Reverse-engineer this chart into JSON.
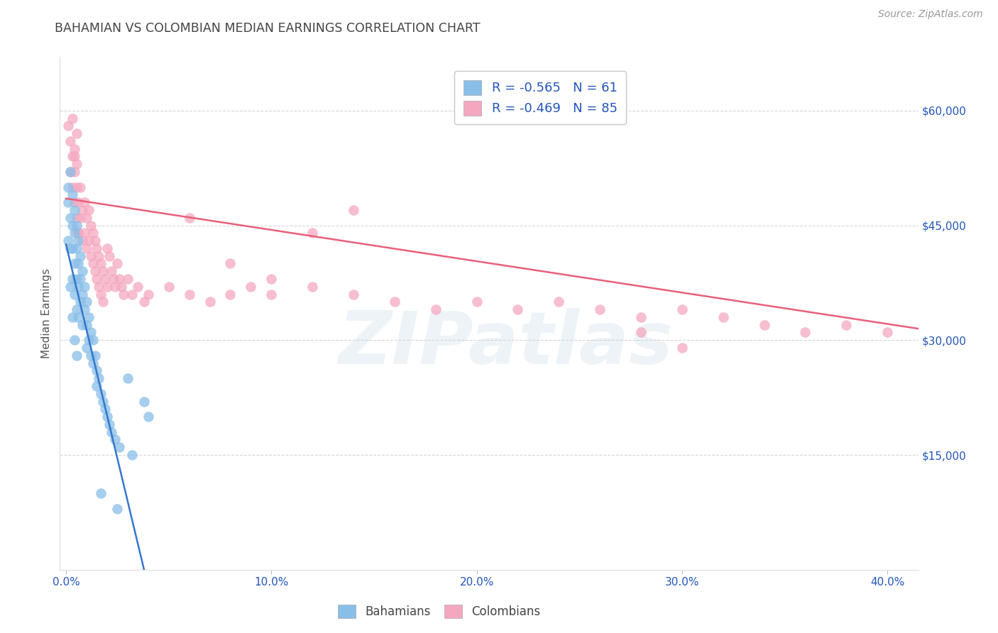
{
  "title": "BAHAMIAN VS COLOMBIAN MEDIAN EARNINGS CORRELATION CHART",
  "source": "Source: ZipAtlas.com",
  "xlabel_ticks": [
    "0.0%",
    "10.0%",
    "20.0%",
    "30.0%",
    "40.0%"
  ],
  "xlabel_vals": [
    0.0,
    0.1,
    0.2,
    0.3,
    0.4
  ],
  "ylabel_ticks": [
    "$15,000",
    "$30,000",
    "$45,000",
    "$60,000"
  ],
  "ylabel_vals": [
    15000,
    30000,
    45000,
    60000
  ],
  "ylabel_label": "Median Earnings",
  "ylim": [
    0,
    67000
  ],
  "xlim": [
    -0.003,
    0.415
  ],
  "blue_color": "#89BEE8",
  "pink_color": "#F4A8C0",
  "blue_line_color": "#3377CC",
  "pink_line_color": "#E8607A",
  "blue_R": -0.565,
  "blue_N": 61,
  "pink_R": -0.469,
  "pink_N": 85,
  "title_color": "#444444",
  "axis_label_color": "#2255BB",
  "source_color": "#999999",
  "watermark_text": "ZIPatlas",
  "legend_label_blue": "Bahamians",
  "legend_label_pink": "Colombians",
  "blue_scatter_x": [
    0.001,
    0.001,
    0.002,
    0.002,
    0.002,
    0.003,
    0.003,
    0.003,
    0.003,
    0.004,
    0.004,
    0.004,
    0.004,
    0.005,
    0.005,
    0.005,
    0.005,
    0.006,
    0.006,
    0.006,
    0.006,
    0.007,
    0.007,
    0.007,
    0.008,
    0.008,
    0.008,
    0.009,
    0.009,
    0.01,
    0.01,
    0.01,
    0.011,
    0.011,
    0.012,
    0.012,
    0.013,
    0.013,
    0.014,
    0.015,
    0.015,
    0.016,
    0.017,
    0.018,
    0.019,
    0.02,
    0.021,
    0.022,
    0.024,
    0.026,
    0.03,
    0.032,
    0.038,
    0.04,
    0.001,
    0.002,
    0.003,
    0.004,
    0.005,
    0.017,
    0.025
  ],
  "blue_scatter_y": [
    48000,
    50000,
    52000,
    46000,
    42000,
    49000,
    45000,
    42000,
    38000,
    47000,
    44000,
    40000,
    36000,
    45000,
    42000,
    38000,
    34000,
    43000,
    40000,
    37000,
    33000,
    41000,
    38000,
    35000,
    39000,
    36000,
    32000,
    37000,
    34000,
    35000,
    32000,
    29000,
    33000,
    30000,
    31000,
    28000,
    30000,
    27000,
    28000,
    26000,
    24000,
    25000,
    23000,
    22000,
    21000,
    20000,
    19000,
    18000,
    17000,
    16000,
    25000,
    15000,
    22000,
    20000,
    43000,
    37000,
    33000,
    30000,
    28000,
    10000,
    8000
  ],
  "pink_scatter_x": [
    0.001,
    0.002,
    0.002,
    0.003,
    0.003,
    0.004,
    0.004,
    0.004,
    0.005,
    0.005,
    0.005,
    0.006,
    0.006,
    0.007,
    0.007,
    0.008,
    0.008,
    0.009,
    0.009,
    0.01,
    0.01,
    0.011,
    0.011,
    0.012,
    0.012,
    0.013,
    0.013,
    0.014,
    0.014,
    0.015,
    0.015,
    0.016,
    0.016,
    0.017,
    0.017,
    0.018,
    0.018,
    0.019,
    0.02,
    0.02,
    0.021,
    0.022,
    0.023,
    0.024,
    0.025,
    0.026,
    0.027,
    0.028,
    0.03,
    0.032,
    0.035,
    0.038,
    0.04,
    0.05,
    0.06,
    0.07,
    0.08,
    0.09,
    0.1,
    0.12,
    0.14,
    0.16,
    0.18,
    0.2,
    0.22,
    0.24,
    0.26,
    0.28,
    0.3,
    0.32,
    0.34,
    0.36,
    0.38,
    0.4,
    0.003,
    0.004,
    0.005,
    0.006,
    0.12,
    0.14,
    0.06,
    0.08,
    0.1,
    0.28,
    0.3
  ],
  "pink_scatter_y": [
    58000,
    56000,
    52000,
    54000,
    50000,
    52000,
    48000,
    54000,
    50000,
    46000,
    53000,
    48000,
    44000,
    50000,
    46000,
    47000,
    43000,
    48000,
    44000,
    46000,
    42000,
    47000,
    43000,
    45000,
    41000,
    44000,
    40000,
    43000,
    39000,
    42000,
    38000,
    41000,
    37000,
    40000,
    36000,
    39000,
    35000,
    38000,
    42000,
    37000,
    41000,
    39000,
    38000,
    37000,
    40000,
    38000,
    37000,
    36000,
    38000,
    36000,
    37000,
    35000,
    36000,
    37000,
    36000,
    35000,
    36000,
    37000,
    38000,
    37000,
    36000,
    35000,
    34000,
    35000,
    34000,
    35000,
    34000,
    33000,
    34000,
    33000,
    32000,
    31000,
    32000,
    31000,
    59000,
    55000,
    57000,
    44000,
    44000,
    47000,
    46000,
    40000,
    36000,
    31000,
    29000
  ],
  "blue_line_x0": 0.0,
  "blue_line_y0": 42500,
  "blue_line_x1": 0.038,
  "blue_line_y1": 0,
  "pink_line_x0": 0.0,
  "pink_line_y0": 48500,
  "pink_line_x1": 0.415,
  "pink_line_y1": 31500,
  "grid_color": "#CCCCCC",
  "background_color": "#FFFFFF",
  "tick_color": "#2255BB"
}
